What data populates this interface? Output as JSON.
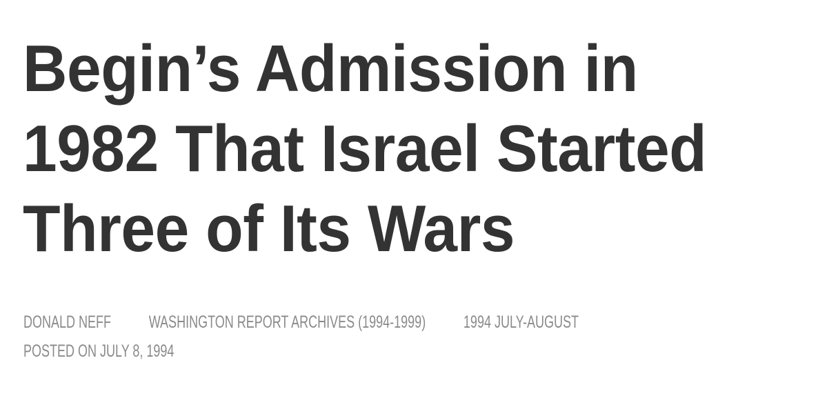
{
  "article": {
    "title_lines": [
      "Begin’s Admission in",
      "1982 That Israel Started",
      "Three of Its Wars"
    ],
    "author": "DONALD NEFF",
    "category": "WASHINGTON REPORT ARCHIVES (1994-1999)",
    "issue": "1994 JULY-AUGUST",
    "posted": "POSTED ON JULY 8, 1994"
  },
  "colors": {
    "title": "#333333",
    "meta": "#8a8a8a",
    "background": "#ffffff"
  }
}
